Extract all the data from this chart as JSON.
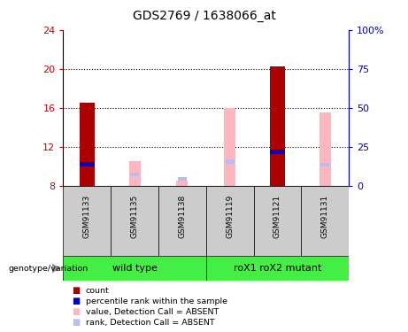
{
  "title": "GDS2769 / 1638066_at",
  "samples": [
    "GSM91133",
    "GSM91135",
    "GSM91138",
    "GSM91119",
    "GSM91121",
    "GSM91131"
  ],
  "ylim": [
    8,
    24
  ],
  "yticks": [
    8,
    12,
    16,
    20,
    24
  ],
  "y2ticks_pct": [
    0,
    25,
    50,
    75,
    100
  ],
  "count_values": [
    16.5,
    null,
    null,
    null,
    20.3,
    null
  ],
  "rank_values": [
    10.2,
    null,
    null,
    null,
    11.5,
    null
  ],
  "absent_value_values": [
    null,
    10.5,
    8.5,
    16.0,
    null,
    15.5
  ],
  "absent_rank_values": [
    null,
    9.2,
    8.7,
    10.5,
    null,
    10.2
  ],
  "bar_width": 0.32,
  "count_color": "#AA0000",
  "rank_color": "#0000CC",
  "absent_value_color": "#FFB6C1",
  "absent_rank_color": "#BBBBEE",
  "tick_color_left": "#CC0000",
  "tick_color_right": "#0000BB",
  "group_green": "#44EE44",
  "group_grey": "#CCCCCC",
  "legend_items": [
    {
      "color": "#AA0000",
      "label": "count"
    },
    {
      "color": "#0000CC",
      "label": "percentile rank within the sample"
    },
    {
      "color": "#FFB6C1",
      "label": "value, Detection Call = ABSENT"
    },
    {
      "color": "#BBBBEE",
      "label": "rank, Detection Call = ABSENT"
    }
  ]
}
